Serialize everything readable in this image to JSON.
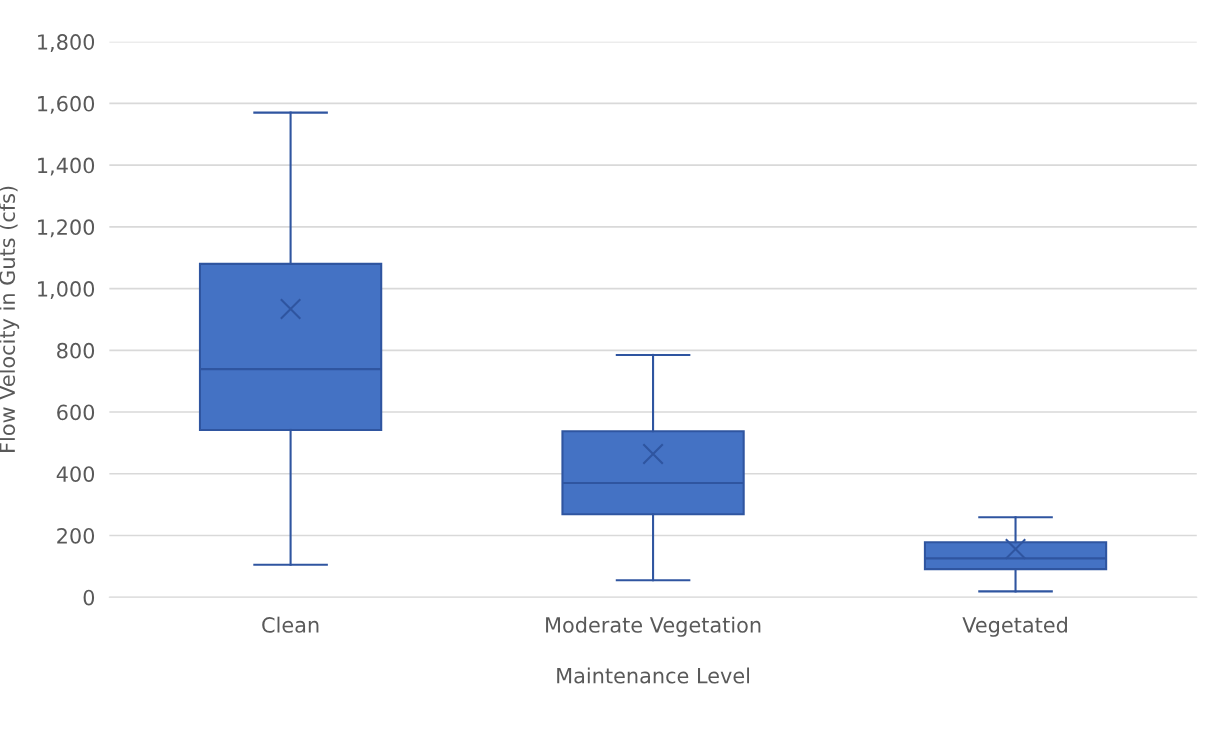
{
  "chart_data": {
    "type": "box",
    "xlabel": "Maintenance Level",
    "ylabel": "Flow Velocity in Guts (cfs)",
    "categories": [
      "Clean",
      "Moderate Vegetation",
      "Vegetated"
    ],
    "color": "#4472c4",
    "boxes": [
      {
        "low": 105,
        "q1": 542,
        "median": 739,
        "q3": 1080,
        "high": 1570,
        "mean": 934
      },
      {
        "low": 55,
        "q1": 269,
        "median": 370,
        "q3": 538,
        "high": 785,
        "mean": 464
      },
      {
        "low": 19,
        "q1": 91,
        "median": 126,
        "q3": 178,
        "high": 259,
        "mean": 156
      }
    ],
    "ylim": [
      0,
      1800
    ],
    "yticks": [
      {
        "value": 0,
        "label": "0"
      },
      {
        "value": 200,
        "label": "200"
      },
      {
        "value": 400,
        "label": "400"
      },
      {
        "value": 600,
        "label": "600"
      },
      {
        "value": 800,
        "label": "800"
      },
      {
        "value": 1000,
        "label": "1,000"
      },
      {
        "value": 1200,
        "label": "1,200"
      },
      {
        "value": 1400,
        "label": "1,400"
      },
      {
        "value": 1600,
        "label": "1,600"
      },
      {
        "value": 1800,
        "label": "1,800"
      }
    ],
    "grid": "y",
    "legend": false
  }
}
